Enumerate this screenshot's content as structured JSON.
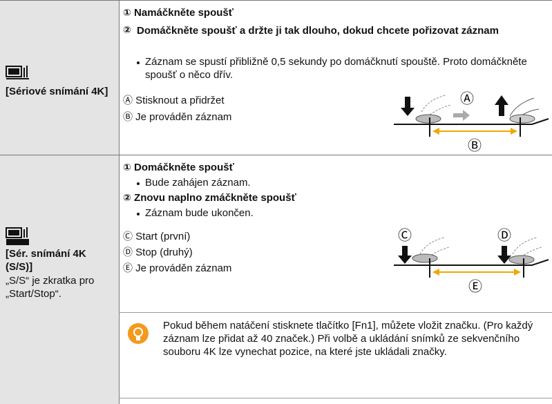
{
  "rows": [
    {
      "label": "[Sériové snímání 4K]",
      "steps": [
        {
          "marker": "①",
          "text": "Namáčkněte spoušť"
        },
        {
          "marker": "②",
          "text": "Domáčkněte spoušť a držte ji tak dlouho, dokud chcete pořizovat záznam",
          "notes": [
            "Záznam se spustí přibližně 0,5 sekundy po domáčknutí spouště. Proto domáčkněte spoušť o něco dřív."
          ]
        }
      ],
      "legend": [
        {
          "marker": "Ⓐ",
          "text": "Stisknout a přidržet"
        },
        {
          "marker": "Ⓑ",
          "text": "Je prováděn záznam"
        }
      ]
    },
    {
      "label": "[Sér. snímání 4K (S/S)]",
      "note": "„S/S“ je zkratka pro „Start/Stop“.",
      "steps": [
        {
          "marker": "①",
          "text": "Domáčkněte spoušť",
          "notes": [
            "Bude zahájen záznam."
          ]
        },
        {
          "marker": "②",
          "text": "Znovu naplno zmáčkněte spoušť",
          "notes": [
            "Záznam bude ukončen."
          ]
        }
      ],
      "legend": [
        {
          "marker": "Ⓒ",
          "text": "Start (první)"
        },
        {
          "marker": "Ⓓ",
          "text": "Stop (druhý)"
        },
        {
          "marker": "Ⓔ",
          "text": "Je prováděn záznam"
        }
      ],
      "tip": "Pokud během natáčení stisknete tlačítko [Fn1], můžete vložit značku. (Pro každý záznam lze přidat až 40 značek.) Při volbě a ukládání snímků ze sekvenčního souboru 4K lze vynechat pozice, na které jste ukládali značky."
    }
  ]
}
